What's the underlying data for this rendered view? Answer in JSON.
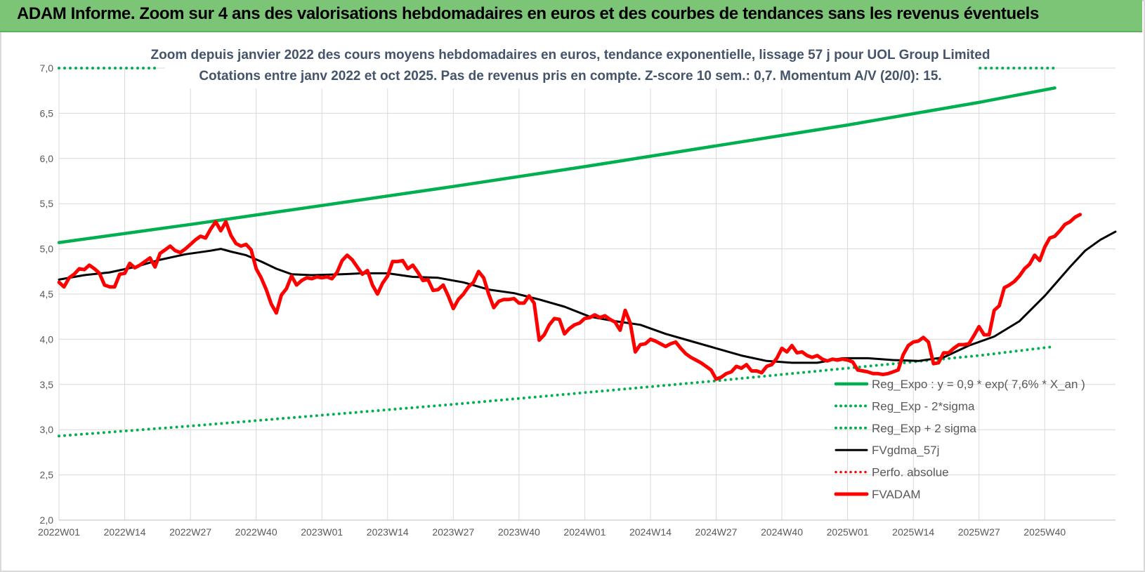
{
  "header": {
    "title": "ADAM Informe. Zoom sur 4 ans des valorisations hebdomadaires en euros et des courbes de tendances sans les revenus éventuels"
  },
  "colors": {
    "banner": "#7cc576",
    "trend": "#00b050",
    "fvadam": "#ff0000",
    "fvgdma": "#000000",
    "perfo": "#ff0000",
    "subtitle": "#44546a"
  },
  "chart_data": {
    "type": "line",
    "title_line1": "Zoom depuis janvier 2022 des cours moyens hebdomadaires en euros, tendance exponentielle, lissage 57 j pour UOL Group Limited",
    "title_line2": "Cotations entre janv 2022 et oct 2025. Pas de revenus pris en compte. Z-score 10 sem.: 0,7. Momentum A/V (20/0): 15.",
    "ylim": [
      2.0,
      7.0
    ],
    "yticks": [
      "2,0",
      "2,5",
      "3,0",
      "3,5",
      "4,0",
      "4,5",
      "5,0",
      "5,5",
      "6,0",
      "6,5",
      "7,0"
    ],
    "xticks": [
      "2022W01",
      "2022W14",
      "2022W27",
      "2022W40",
      "2023W01",
      "2023W14",
      "2023W27",
      "2023W40",
      "2024W01",
      "2024W14",
      "2024W27",
      "2024W40",
      "2025W01",
      "2025W14",
      "2025W27",
      "2025W40"
    ],
    "grid": true,
    "legend_position": "bottom-right",
    "legend": [
      "Reg_Expo : y = 0,9 * exp( 7,6% *  X_an )",
      "Reg_Exp - 2*sigma",
      "Reg_Exp + 2 sigma",
      "FVgdma_57j",
      "Perfo. absolue",
      "FVADAM"
    ],
    "series": [
      {
        "name": "Reg_Expo : y = 0,9 * exp( 7,6% *  X_an )",
        "style": "solid",
        "color": "#00b050",
        "points": [
          [
            0,
            5.07
          ],
          [
            26,
            5.27
          ],
          [
            52,
            5.48
          ],
          [
            78,
            5.69
          ],
          [
            104,
            5.91
          ],
          [
            130,
            6.14
          ],
          [
            156,
            6.37
          ],
          [
            182,
            6.62
          ],
          [
            197,
            6.78
          ]
        ]
      },
      {
        "name": "Reg_Exp - 2*sigma",
        "style": "dotted",
        "color": "#00b050",
        "points": [
          [
            0,
            2.93
          ],
          [
            26,
            3.04
          ],
          [
            52,
            3.16
          ],
          [
            78,
            3.28
          ],
          [
            104,
            3.41
          ],
          [
            130,
            3.54
          ],
          [
            156,
            3.68
          ],
          [
            182,
            3.82
          ],
          [
            197,
            3.92
          ]
        ]
      },
      {
        "name": "Reg_Exp + 2 sigma",
        "style": "dotted",
        "color": "#00b050",
        "points": [
          [
            0,
            7.0
          ],
          [
            20,
            7.0
          ]
        ],
        "points2": [
          [
            180,
            7.0
          ],
          [
            197,
            7.0
          ]
        ]
      },
      {
        "name": "FVgdma_57j",
        "style": "solid",
        "color": "#000000",
        "points": [
          [
            0,
            4.66
          ],
          [
            5,
            4.71
          ],
          [
            10,
            4.74
          ],
          [
            15,
            4.8
          ],
          [
            20,
            4.88
          ],
          [
            25,
            4.94
          ],
          [
            30,
            4.98
          ],
          [
            32,
            5.0
          ],
          [
            34,
            4.97
          ],
          [
            37,
            4.93
          ],
          [
            40,
            4.86
          ],
          [
            43,
            4.78
          ],
          [
            46,
            4.72
          ],
          [
            50,
            4.71
          ],
          [
            56,
            4.72
          ],
          [
            60,
            4.73
          ],
          [
            65,
            4.73
          ],
          [
            70,
            4.69
          ],
          [
            75,
            4.68
          ],
          [
            80,
            4.63
          ],
          [
            85,
            4.55
          ],
          [
            90,
            4.51
          ],
          [
            95,
            4.44
          ],
          [
            100,
            4.36
          ],
          [
            105,
            4.25
          ],
          [
            110,
            4.2
          ],
          [
            115,
            4.16
          ],
          [
            120,
            4.06
          ],
          [
            125,
            3.98
          ],
          [
            130,
            3.9
          ],
          [
            135,
            3.82
          ],
          [
            140,
            3.76
          ],
          [
            145,
            3.74
          ],
          [
            150,
            3.74
          ],
          [
            155,
            3.79
          ],
          [
            160,
            3.79
          ],
          [
            165,
            3.77
          ],
          [
            170,
            3.76
          ],
          [
            175,
            3.8
          ],
          [
            180,
            3.93
          ],
          [
            185,
            4.03
          ],
          [
            190,
            4.2
          ],
          [
            195,
            4.48
          ],
          [
            200,
            4.8
          ],
          [
            203,
            4.98
          ],
          [
            206,
            5.1
          ],
          [
            209,
            5.19
          ]
        ]
      },
      {
        "name": "FVADAM",
        "style": "solid",
        "color": "#ff0000",
        "points": [
          [
            0,
            4.63
          ],
          [
            1,
            4.58
          ],
          [
            2,
            4.68
          ],
          [
            3,
            4.72
          ],
          [
            4,
            4.78
          ],
          [
            5,
            4.77
          ],
          [
            6,
            4.82
          ],
          [
            7,
            4.78
          ],
          [
            8,
            4.73
          ],
          [
            9,
            4.6
          ],
          [
            10,
            4.58
          ],
          [
            11,
            4.58
          ],
          [
            12,
            4.72
          ],
          [
            13,
            4.73
          ],
          [
            14,
            4.84
          ],
          [
            15,
            4.79
          ],
          [
            16,
            4.82
          ],
          [
            17,
            4.86
          ],
          [
            18,
            4.9
          ],
          [
            19,
            4.8
          ],
          [
            20,
            4.95
          ],
          [
            21,
            4.99
          ],
          [
            22,
            5.03
          ],
          [
            23,
            4.98
          ],
          [
            24,
            4.96
          ],
          [
            25,
            5.0
          ],
          [
            26,
            5.05
          ],
          [
            27,
            5.1
          ],
          [
            28,
            5.14
          ],
          [
            29,
            5.12
          ],
          [
            30,
            5.22
          ],
          [
            31,
            5.3
          ],
          [
            32,
            5.2
          ],
          [
            33,
            5.3
          ],
          [
            34,
            5.15
          ],
          [
            35,
            5.06
          ],
          [
            36,
            5.03
          ],
          [
            37,
            5.05
          ],
          [
            38,
            4.99
          ],
          [
            39,
            4.78
          ],
          [
            40,
            4.68
          ],
          [
            41,
            4.55
          ],
          [
            42,
            4.39
          ],
          [
            43,
            4.29
          ],
          [
            44,
            4.49
          ],
          [
            45,
            4.56
          ],
          [
            46,
            4.7
          ],
          [
            47,
            4.6
          ],
          [
            48,
            4.65
          ],
          [
            49,
            4.68
          ],
          [
            50,
            4.67
          ],
          [
            51,
            4.69
          ],
          [
            52,
            4.68
          ],
          [
            53,
            4.69
          ],
          [
            54,
            4.67
          ],
          [
            55,
            4.74
          ],
          [
            56,
            4.87
          ],
          [
            57,
            4.93
          ],
          [
            58,
            4.88
          ],
          [
            59,
            4.8
          ],
          [
            60,
            4.72
          ],
          [
            61,
            4.76
          ],
          [
            62,
            4.6
          ],
          [
            63,
            4.5
          ],
          [
            64,
            4.62
          ],
          [
            65,
            4.7
          ],
          [
            66,
            4.86
          ],
          [
            67,
            4.86
          ],
          [
            68,
            4.87
          ],
          [
            69,
            4.78
          ],
          [
            70,
            4.82
          ],
          [
            71,
            4.74
          ],
          [
            72,
            4.65
          ],
          [
            73,
            4.66
          ],
          [
            74,
            4.54
          ],
          [
            75,
            4.55
          ],
          [
            76,
            4.6
          ],
          [
            77,
            4.48
          ],
          [
            78,
            4.34
          ],
          [
            79,
            4.44
          ],
          [
            80,
            4.5
          ],
          [
            81,
            4.58
          ],
          [
            82,
            4.63
          ],
          [
            83,
            4.75
          ],
          [
            84,
            4.68
          ],
          [
            85,
            4.5
          ],
          [
            86,
            4.35
          ],
          [
            87,
            4.42
          ],
          [
            88,
            4.44
          ],
          [
            89,
            4.44
          ],
          [
            90,
            4.45
          ],
          [
            91,
            4.4
          ],
          [
            92,
            4.4
          ],
          [
            93,
            4.48
          ],
          [
            94,
            4.4
          ],
          [
            95,
            3.99
          ],
          [
            96,
            4.05
          ],
          [
            97,
            4.16
          ],
          [
            98,
            4.23
          ],
          [
            99,
            4.22
          ],
          [
            100,
            4.06
          ],
          [
            101,
            4.12
          ],
          [
            102,
            4.16
          ],
          [
            103,
            4.18
          ],
          [
            104,
            4.23
          ],
          [
            105,
            4.24
          ],
          [
            106,
            4.27
          ],
          [
            107,
            4.24
          ],
          [
            108,
            4.26
          ],
          [
            109,
            4.22
          ],
          [
            110,
            4.19
          ],
          [
            111,
            4.1
          ],
          [
            112,
            4.32
          ],
          [
            113,
            4.18
          ],
          [
            114,
            3.86
          ],
          [
            115,
            3.94
          ],
          [
            116,
            3.95
          ],
          [
            117,
            4.0
          ],
          [
            118,
            3.98
          ],
          [
            119,
            3.95
          ],
          [
            120,
            3.92
          ],
          [
            121,
            3.95
          ],
          [
            122,
            3.97
          ],
          [
            123,
            3.9
          ],
          [
            124,
            3.84
          ],
          [
            125,
            3.8
          ],
          [
            126,
            3.77
          ],
          [
            127,
            3.74
          ],
          [
            128,
            3.7
          ],
          [
            129,
            3.66
          ],
          [
            130,
            3.56
          ],
          [
            131,
            3.58
          ],
          [
            132,
            3.62
          ],
          [
            133,
            3.64
          ],
          [
            134,
            3.7
          ],
          [
            135,
            3.68
          ],
          [
            136,
            3.72
          ],
          [
            137,
            3.65
          ],
          [
            138,
            3.65
          ],
          [
            139,
            3.63
          ],
          [
            140,
            3.7
          ],
          [
            141,
            3.72
          ],
          [
            142,
            3.79
          ],
          [
            143,
            3.9
          ],
          [
            144,
            3.86
          ],
          [
            145,
            3.93
          ],
          [
            146,
            3.85
          ],
          [
            147,
            3.86
          ],
          [
            148,
            3.82
          ],
          [
            149,
            3.8
          ],
          [
            150,
            3.82
          ],
          [
            151,
            3.78
          ],
          [
            152,
            3.76
          ],
          [
            153,
            3.78
          ],
          [
            154,
            3.77
          ],
          [
            155,
            3.78
          ],
          [
            156,
            3.77
          ],
          [
            157,
            3.75
          ],
          [
            158,
            3.66
          ],
          [
            159,
            3.65
          ],
          [
            160,
            3.64
          ],
          [
            161,
            3.62
          ],
          [
            162,
            3.62
          ],
          [
            163,
            3.61
          ],
          [
            164,
            3.62
          ],
          [
            165,
            3.64
          ],
          [
            166,
            3.66
          ],
          [
            167,
            3.83
          ],
          [
            168,
            3.93
          ],
          [
            169,
            3.97
          ],
          [
            170,
            3.98
          ],
          [
            171,
            4.02
          ],
          [
            172,
            3.97
          ],
          [
            173,
            3.73
          ],
          [
            174,
            3.74
          ],
          [
            175,
            3.85
          ],
          [
            176,
            3.85
          ],
          [
            177,
            3.9
          ],
          [
            178,
            3.94
          ],
          [
            179,
            3.94
          ],
          [
            180,
            3.95
          ],
          [
            181,
            4.04
          ],
          [
            182,
            4.14
          ],
          [
            183,
            4.05
          ],
          [
            184,
            4.05
          ],
          [
            185,
            4.32
          ],
          [
            186,
            4.37
          ],
          [
            187,
            4.57
          ],
          [
            188,
            4.6
          ],
          [
            189,
            4.64
          ],
          [
            190,
            4.7
          ],
          [
            191,
            4.78
          ],
          [
            192,
            4.83
          ],
          [
            193,
            4.93
          ],
          [
            194,
            4.87
          ],
          [
            195,
            5.02
          ],
          [
            196,
            5.12
          ],
          [
            197,
            5.14
          ],
          [
            198,
            5.2
          ],
          [
            199,
            5.27
          ],
          [
            200,
            5.3
          ],
          [
            201,
            5.35
          ],
          [
            202,
            5.38
          ]
        ]
      }
    ]
  }
}
